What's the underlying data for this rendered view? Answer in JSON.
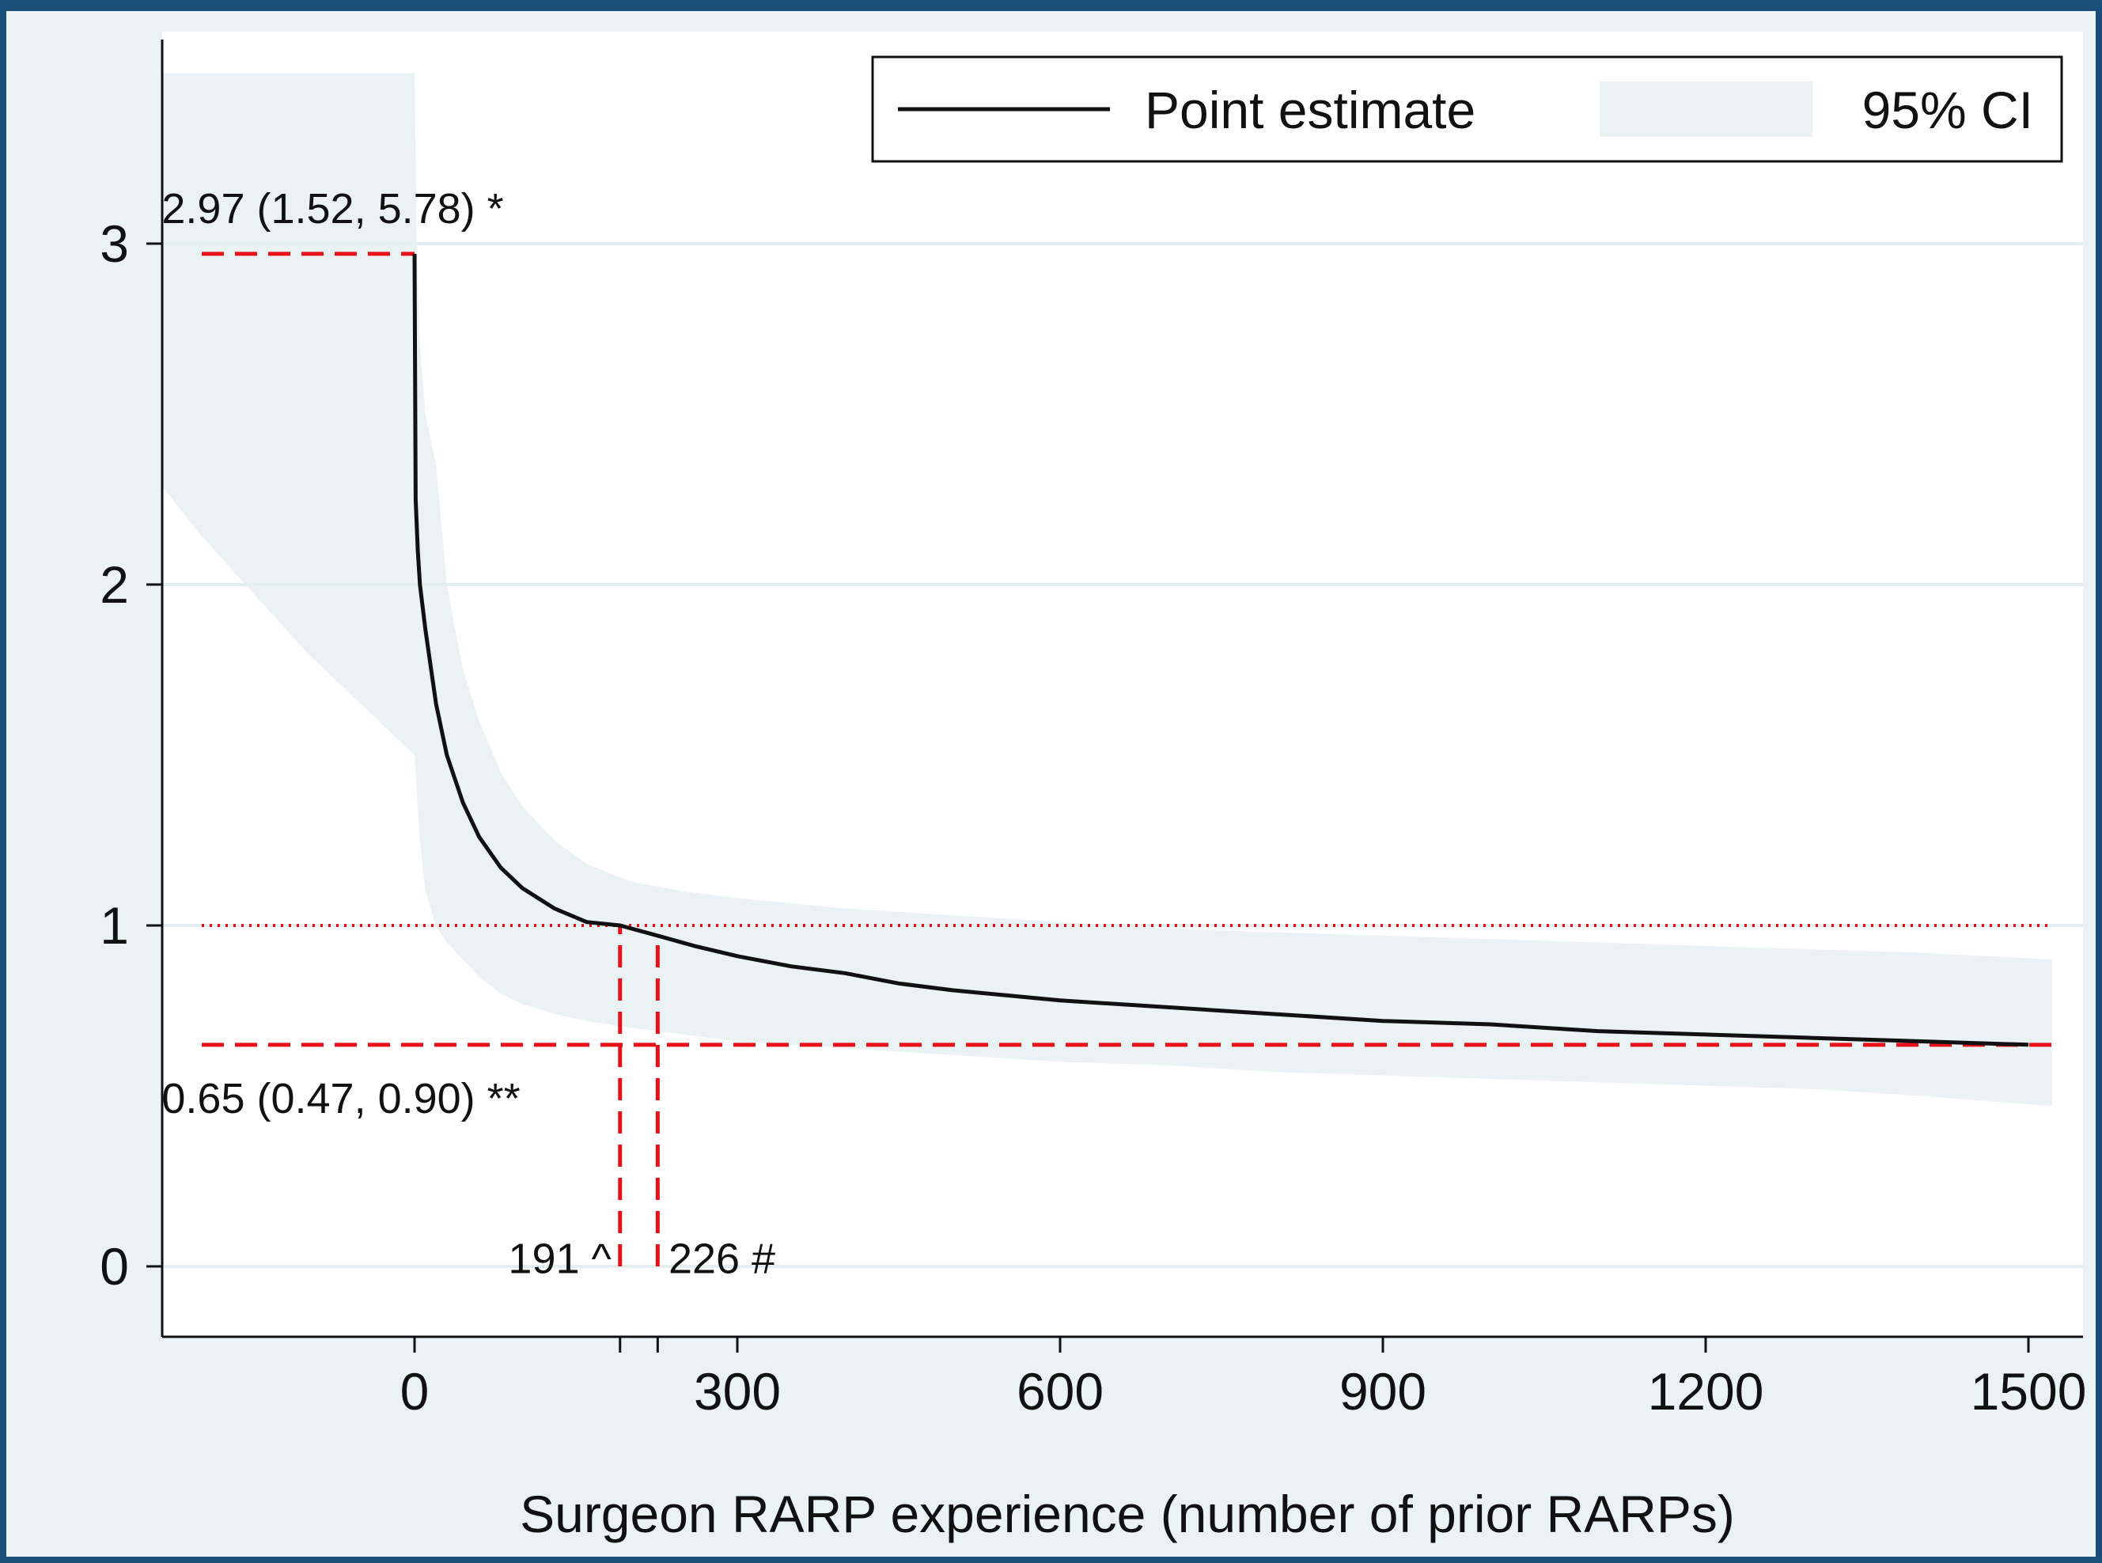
{
  "chart_data": {
    "type": "line",
    "xlabel": "Surgeon RARP experience (number of prior RARPs)",
    "ylabel": "",
    "xlim": [
      -310,
      1545
    ],
    "ylim": [
      -0.2,
      3.6
    ],
    "x_ticks": [
      0,
      300,
      600,
      900,
      1200,
      1500
    ],
    "y_ticks": [
      0,
      1,
      2,
      3
    ],
    "grid": "horizontal",
    "legend": {
      "position": "top-right",
      "entries": [
        "Point estimate",
        "95% CI"
      ]
    },
    "colors": {
      "line": "#111111",
      "ci_band": "#eaf2f3",
      "reference": "#e8111a",
      "grid": "#e3eef0"
    },
    "series": [
      {
        "name": "Point estimate",
        "type": "line",
        "x": [
          0,
          1,
          3,
          5,
          10,
          20,
          30,
          45,
          60,
          80,
          100,
          130,
          160,
          191,
          226,
          260,
          300,
          350,
          400,
          450,
          500,
          600,
          700,
          800,
          900,
          1000,
          1100,
          1200,
          1300,
          1400,
          1500
        ],
        "y": [
          2.97,
          2.25,
          2.1,
          2.0,
          1.87,
          1.65,
          1.5,
          1.36,
          1.26,
          1.17,
          1.11,
          1.05,
          1.01,
          1.0,
          0.97,
          0.94,
          0.91,
          0.88,
          0.86,
          0.83,
          0.81,
          0.78,
          0.76,
          0.74,
          0.72,
          0.71,
          0.69,
          0.68,
          0.67,
          0.66,
          0.65
        ]
      },
      {
        "name": "95% CI",
        "type": "area",
        "x": [
          -310,
          -300,
          -200,
          -100,
          0,
          2,
          5,
          10,
          20,
          30,
          45,
          60,
          80,
          100,
          130,
          160,
          200,
          250,
          300,
          400,
          500,
          600,
          700,
          800,
          900,
          1000,
          1100,
          1200,
          1300,
          1400,
          1522
        ],
        "upper": [
          3.1,
          3.5,
          3.5,
          3.5,
          3.5,
          3.0,
          2.7,
          2.5,
          2.35,
          2.0,
          1.75,
          1.6,
          1.45,
          1.35,
          1.25,
          1.18,
          1.13,
          1.1,
          1.08,
          1.05,
          1.03,
          1.01,
          0.99,
          0.98,
          0.97,
          0.96,
          0.95,
          0.94,
          0.93,
          0.92,
          0.9
        ],
        "lower": [
          2.6,
          2.55,
          2.15,
          1.8,
          1.5,
          1.4,
          1.25,
          1.1,
          1.0,
          0.95,
          0.9,
          0.85,
          0.8,
          0.77,
          0.74,
          0.72,
          0.7,
          0.68,
          0.66,
          0.64,
          0.62,
          0.6,
          0.59,
          0.57,
          0.56,
          0.55,
          0.54,
          0.53,
          0.52,
          0.5,
          0.47
        ]
      }
    ],
    "reference_lines": [
      {
        "orientation": "horizontal",
        "y": 1.0,
        "style": "dotted",
        "x_from": -310,
        "x_to": 1522
      },
      {
        "orientation": "horizontal",
        "y": 2.97,
        "style": "dashed",
        "x_from": -310,
        "x_to": 0
      },
      {
        "orientation": "horizontal",
        "y": 0.65,
        "style": "dashed",
        "x_from": -310,
        "x_to": 1522
      },
      {
        "orientation": "vertical",
        "x": 191,
        "style": "dashed",
        "y_from": 0,
        "y_to": 1.0
      },
      {
        "orientation": "vertical",
        "x": 226,
        "style": "dashed",
        "y_from": 0,
        "y_to": 0.97
      }
    ],
    "annotations": [
      {
        "text": "2.97 (1.52, 5.78) *",
        "x": -235,
        "y": 3.06,
        "anchor": "start"
      },
      {
        "text": "0.65 (0.47, 0.90) **",
        "x": -235,
        "y": 0.45,
        "anchor": "start"
      },
      {
        "text": "191 ^",
        "x": 183,
        "y": -0.02,
        "anchor": "end"
      },
      {
        "text": "226 #",
        "x": 236,
        "y": -0.02,
        "anchor": "start"
      }
    ]
  }
}
